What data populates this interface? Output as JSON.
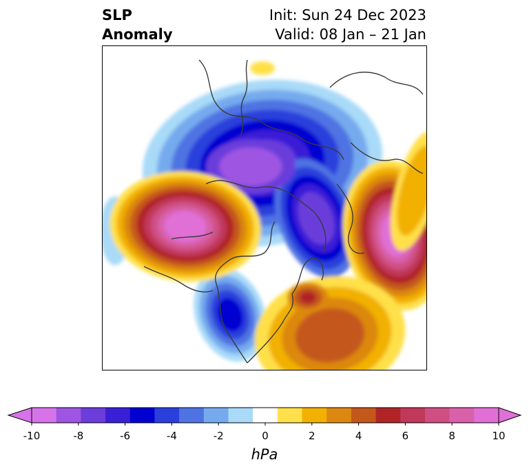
{
  "title": {
    "line1": "SLP",
    "line2": "Anomaly"
  },
  "subtitle": {
    "line1": "Init: Sun 24 Dec 2023",
    "line2": "Valid: 08 Jan – 21 Jan"
  },
  "colorbar": {
    "unit": "hPa",
    "ticks": [
      "-10",
      "-8",
      "-6",
      "-4",
      "-2",
      "0",
      "2",
      "4",
      "6",
      "8",
      "10"
    ],
    "levels": [
      -10,
      -9,
      -8,
      -7,
      -6,
      -5,
      -4,
      -3,
      -2,
      -1,
      1,
      2,
      3,
      4,
      5,
      6,
      7,
      8,
      9,
      10
    ],
    "colors": [
      "#d673e8",
      "#9e55e2",
      "#6b3ddb",
      "#3b1fd6",
      "#0000d0",
      "#2a3fdc",
      "#4f73e2",
      "#76aaee",
      "#a9daf8",
      "#ffffff",
      "#ffe04a",
      "#f2b100",
      "#dc8810",
      "#c4581a",
      "#b02428",
      "#c0385a",
      "#cf4f83",
      "#d861aa",
      "#e070d6"
    ],
    "extend": "both"
  },
  "map": {
    "projection": "polar-stereographic",
    "hemisphere": "northern",
    "field": "sea level pressure anomaly"
  }
}
